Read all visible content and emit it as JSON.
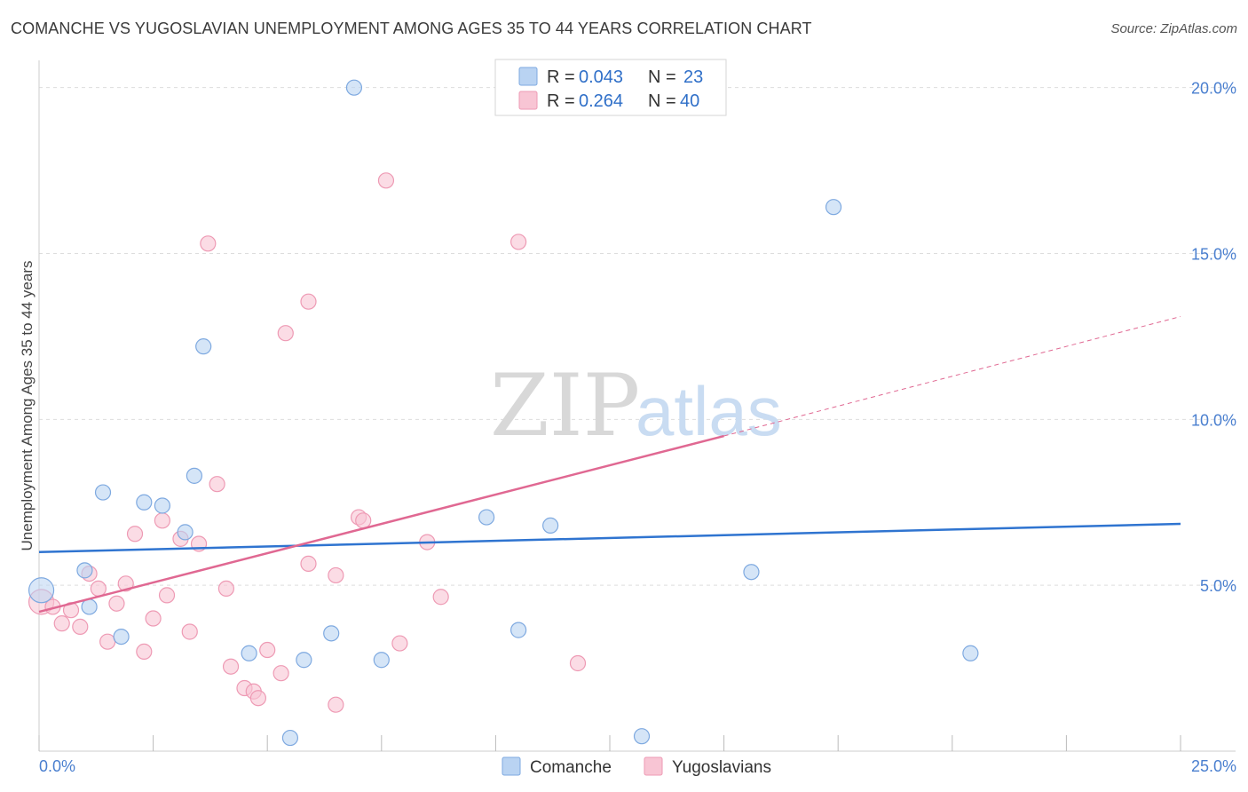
{
  "title": "COMANCHE VS YUGOSLAVIAN UNEMPLOYMENT AMONG AGES 35 TO 44 YEARS CORRELATION CHART",
  "source": "Source: ZipAtlas.com",
  "watermark": {
    "zip": "ZIP",
    "atlas": "atlas"
  },
  "colors": {
    "comanche_fill": "#b9d3f2",
    "comanche_stroke": "#7ea9e0",
    "comanche_line": "#2f74d0",
    "yugo_fill": "#f8c5d4",
    "yugo_stroke": "#ee9ab4",
    "yugo_line": "#e06892",
    "axis_text": "#4a7fcf",
    "grid": "#dddddd"
  },
  "legend": {
    "rows": [
      {
        "series": "Comanche",
        "r_label": "R = ",
        "r_value": "0.043",
        "n_label": "N = ",
        "n_value": "23"
      },
      {
        "series": "Yugoslavians",
        "r_label": "R = ",
        "r_value": "0.264",
        "n_label": "N = ",
        "n_value": "40"
      }
    ]
  },
  "bottom_legend": [
    "Comanche",
    "Yugoslavians"
  ],
  "chart_data": {
    "type": "scatter",
    "title": "COMANCHE VS YUGOSLAVIAN UNEMPLOYMENT AMONG AGES 35 TO 44 YEARS CORRELATION CHART",
    "xlabel": "",
    "ylabel": "Unemployment Among Ages 35 to 44 years",
    "xlim": [
      0,
      25
    ],
    "ylim": [
      0,
      20.5
    ],
    "x_tick_labels": [
      "0.0%",
      "25.0%"
    ],
    "y_ticks": [
      5,
      10,
      15,
      20
    ],
    "y_tick_labels": [
      "5.0%",
      "10.0%",
      "15.0%",
      "20.0%"
    ],
    "grid": true,
    "series": [
      {
        "name": "Comanche",
        "r": 0.043,
        "n": 23,
        "trend": {
          "x": [
            0,
            25
          ],
          "y": [
            6.0,
            6.85
          ],
          "style": "solid"
        },
        "points": [
          {
            "x": 0.05,
            "y": 4.85,
            "big": true
          },
          {
            "x": 1.0,
            "y": 5.45
          },
          {
            "x": 1.4,
            "y": 7.8
          },
          {
            "x": 1.1,
            "y": 4.35
          },
          {
            "x": 1.8,
            "y": 3.45
          },
          {
            "x": 2.3,
            "y": 7.5
          },
          {
            "x": 2.7,
            "y": 7.4
          },
          {
            "x": 3.2,
            "y": 6.6
          },
          {
            "x": 3.4,
            "y": 8.3
          },
          {
            "x": 3.6,
            "y": 12.2
          },
          {
            "x": 4.6,
            "y": 2.95
          },
          {
            "x": 5.5,
            "y": 0.4
          },
          {
            "x": 5.8,
            "y": 2.75
          },
          {
            "x": 6.4,
            "y": 3.55
          },
          {
            "x": 6.9,
            "y": 20.0
          },
          {
            "x": 7.5,
            "y": 2.75
          },
          {
            "x": 9.8,
            "y": 7.05
          },
          {
            "x": 10.5,
            "y": 3.65
          },
          {
            "x": 11.2,
            "y": 6.8
          },
          {
            "x": 13.2,
            "y": 0.45
          },
          {
            "x": 15.6,
            "y": 5.4
          },
          {
            "x": 17.4,
            "y": 16.4
          },
          {
            "x": 20.4,
            "y": 2.95
          }
        ]
      },
      {
        "name": "Yugoslavians",
        "r": 0.264,
        "n": 40,
        "trend": {
          "x": [
            0,
            15
          ],
          "y": [
            4.2,
            9.5
          ],
          "style": "solid",
          "extended": {
            "x": [
              15,
              25
            ],
            "y": [
              9.5,
              13.1
            ],
            "style": "dashed"
          }
        },
        "points": [
          {
            "x": 0.05,
            "y": 4.5,
            "big": true
          },
          {
            "x": 0.3,
            "y": 4.35
          },
          {
            "x": 0.5,
            "y": 3.85
          },
          {
            "x": 0.7,
            "y": 4.25
          },
          {
            "x": 0.9,
            "y": 3.75
          },
          {
            "x": 1.1,
            "y": 5.35
          },
          {
            "x": 1.3,
            "y": 4.9
          },
          {
            "x": 1.5,
            "y": 3.3
          },
          {
            "x": 1.7,
            "y": 4.45
          },
          {
            "x": 1.9,
            "y": 5.05
          },
          {
            "x": 2.1,
            "y": 6.55
          },
          {
            "x": 2.3,
            "y": 3.0
          },
          {
            "x": 2.5,
            "y": 4.0
          },
          {
            "x": 2.7,
            "y": 6.95
          },
          {
            "x": 2.8,
            "y": 4.7
          },
          {
            "x": 3.1,
            "y": 6.4
          },
          {
            "x": 3.3,
            "y": 3.6
          },
          {
            "x": 3.5,
            "y": 6.25
          },
          {
            "x": 3.7,
            "y": 15.3
          },
          {
            "x": 3.9,
            "y": 8.05
          },
          {
            "x": 4.1,
            "y": 4.9
          },
          {
            "x": 4.2,
            "y": 2.55
          },
          {
            "x": 4.5,
            "y": 1.9
          },
          {
            "x": 4.7,
            "y": 1.8
          },
          {
            "x": 4.8,
            "y": 1.6
          },
          {
            "x": 5.0,
            "y": 3.05
          },
          {
            "x": 5.3,
            "y": 2.35
          },
          {
            "x": 5.4,
            "y": 12.6
          },
          {
            "x": 5.9,
            "y": 13.55
          },
          {
            "x": 5.9,
            "y": 5.65
          },
          {
            "x": 6.5,
            "y": 1.4
          },
          {
            "x": 6.5,
            "y": 5.3
          },
          {
            "x": 7.0,
            "y": 7.05
          },
          {
            "x": 7.1,
            "y": 6.95
          },
          {
            "x": 7.6,
            "y": 17.2
          },
          {
            "x": 7.9,
            "y": 3.25
          },
          {
            "x": 8.5,
            "y": 6.3
          },
          {
            "x": 8.8,
            "y": 4.65
          },
          {
            "x": 10.5,
            "y": 15.35
          },
          {
            "x": 11.8,
            "y": 2.65
          }
        ]
      }
    ]
  }
}
